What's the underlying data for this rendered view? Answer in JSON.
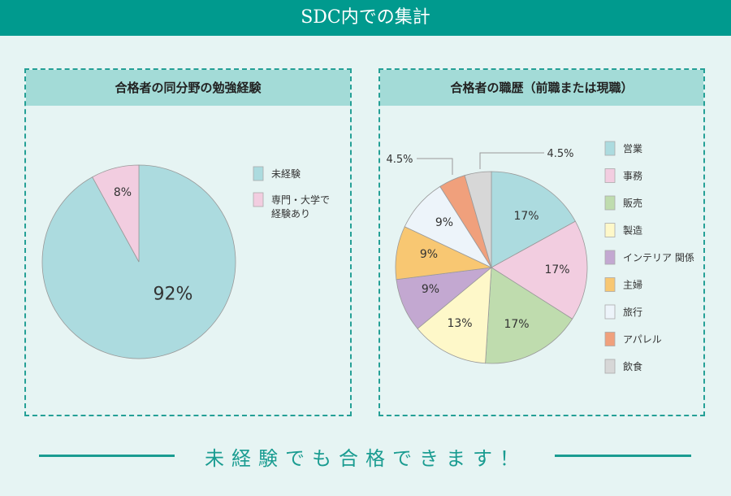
{
  "header": {
    "title": "SDC内での集計"
  },
  "footer": {
    "message": "未経験でも合格できます！"
  },
  "chart_data": [
    {
      "type": "pie",
      "title": "合格者の同分野の勉強経験",
      "labels": [
        "未経験",
        "専門・大学で経験あり"
      ],
      "legend_lines": [
        [
          "未経験"
        ],
        [
          "専門・大学で",
          "経験あり"
        ]
      ],
      "values": [
        92,
        8
      ],
      "value_labels": [
        "92%",
        "8%"
      ],
      "colors": [
        "#acdbdf",
        "#f2cde0"
      ],
      "legend": "right"
    },
    {
      "type": "pie",
      "title": "合格者の職歴（前職または現職）",
      "labels": [
        "営業",
        "事務",
        "販売",
        "製造",
        "インテリア関係",
        "主婦",
        "旅行",
        "アパレル",
        "飲食"
      ],
      "legend_lines": [
        [
          "営業"
        ],
        [
          "事務"
        ],
        [
          "販売"
        ],
        [
          "製造"
        ],
        [
          "インテリア 関係"
        ],
        [
          "主婦"
        ],
        [
          "旅行"
        ],
        [
          "アパレル"
        ],
        [
          "飲食"
        ]
      ],
      "values": [
        17,
        17,
        17,
        13,
        9,
        9,
        9,
        4.5,
        4.5
      ],
      "value_labels": [
        "17%",
        "17%",
        "17%",
        "13%",
        "9%",
        "9%",
        "9%",
        "4.5%",
        "4.5%"
      ],
      "colors": [
        "#acdbdf",
        "#f2cde0",
        "#bfdcae",
        "#fef8c9",
        "#c3a8d1",
        "#f8c772",
        "#edf4fa",
        "#f0a07c",
        "#d7d7d7"
      ],
      "legend": "right"
    }
  ]
}
